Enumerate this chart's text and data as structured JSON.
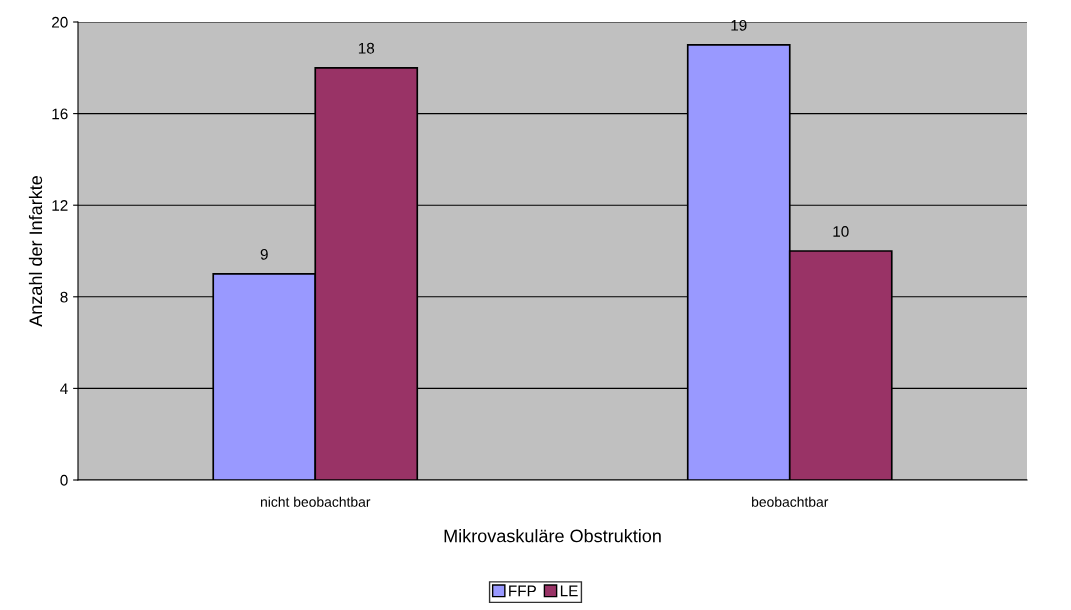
{
  "chart_data": {
    "type": "bar",
    "categories": [
      "nicht beobachtbar",
      "beobachtbar"
    ],
    "series": [
      {
        "name": "FFP",
        "color": "#9999ff",
        "values": [
          9,
          19
        ]
      },
      {
        "name": "LE",
        "color": "#993366",
        "values": [
          18,
          10
        ]
      }
    ],
    "xlabel": "Mikrovaskuläre Obstruktion",
    "ylabel": "Anzahl der Infarkte",
    "ylim": [
      0,
      20
    ],
    "yticks": [
      0,
      4,
      8,
      12,
      16,
      20
    ],
    "grid": "y",
    "legend": "bottom",
    "data_labels": true
  }
}
